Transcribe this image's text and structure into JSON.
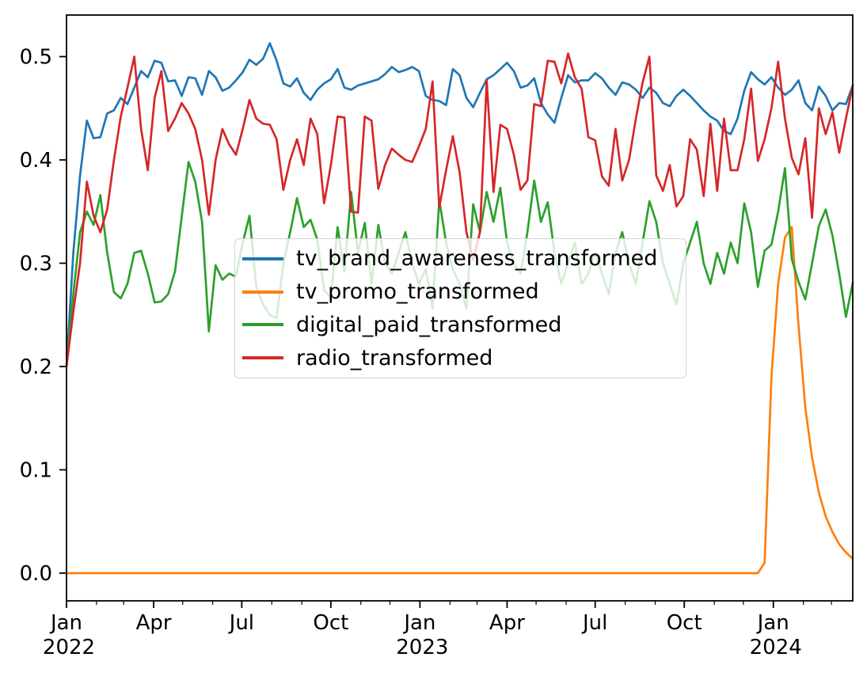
{
  "chart_data": {
    "type": "line",
    "title": "",
    "xlabel": "",
    "ylabel": "",
    "grid": false,
    "sampling": "weekly points, 7-day steps starting at first tick (Jan 2022)",
    "x_axis": {
      "domain_days": [
        0,
        812
      ],
      "major_ticks": [
        {
          "day": 0,
          "label": "Jan",
          "year_label": "2022"
        },
        {
          "day": 90,
          "label": "Apr",
          "year_label": ""
        },
        {
          "day": 181,
          "label": "Jul",
          "year_label": ""
        },
        {
          "day": 273,
          "label": "Oct",
          "year_label": ""
        },
        {
          "day": 365,
          "label": "Jan",
          "year_label": "2023"
        },
        {
          "day": 455,
          "label": "Apr",
          "year_label": ""
        },
        {
          "day": 546,
          "label": "Jul",
          "year_label": ""
        },
        {
          "day": 638,
          "label": "Oct",
          "year_label": ""
        },
        {
          "day": 730,
          "label": "Jan",
          "year_label": "2024"
        }
      ],
      "minor_tick_days": [
        31,
        59,
        120,
        151,
        212,
        243,
        304,
        334,
        396,
        424,
        485,
        516,
        577,
        608,
        669,
        699,
        761,
        790
      ]
    },
    "y_axis": {
      "range": [
        -0.027,
        0.54
      ],
      "ticks": [
        {
          "value": 0.0,
          "label": "0.0"
        },
        {
          "value": 0.1,
          "label": "0.1"
        },
        {
          "value": 0.2,
          "label": "0.2"
        },
        {
          "value": 0.3,
          "label": "0.3"
        },
        {
          "value": 0.4,
          "label": "0.4"
        },
        {
          "value": 0.5,
          "label": "0.5"
        }
      ]
    },
    "legend": {
      "position": "center-left",
      "entries": [
        "tv_brand_awareness_transformed",
        "tv_promo_transformed",
        "digital_paid_transformed",
        "radio_transformed"
      ]
    },
    "series": [
      {
        "name": "tv_brand_awareness_transformed",
        "color": "#1f77b4",
        "values": [
          0.2,
          0.31,
          0.385,
          0.438,
          0.421,
          0.422,
          0.445,
          0.448,
          0.46,
          0.454,
          0.47,
          0.486,
          0.48,
          0.496,
          0.494,
          0.476,
          0.477,
          0.462,
          0.48,
          0.479,
          0.463,
          0.486,
          0.48,
          0.467,
          0.47,
          0.477,
          0.485,
          0.497,
          0.492,
          0.498,
          0.513,
          0.496,
          0.474,
          0.471,
          0.479,
          0.465,
          0.458,
          0.468,
          0.474,
          0.478,
          0.488,
          0.47,
          0.468,
          0.472,
          0.474,
          0.476,
          0.478,
          0.483,
          0.49,
          0.485,
          0.487,
          0.49,
          0.486,
          0.462,
          0.458,
          0.457,
          0.453,
          0.488,
          0.482,
          0.46,
          0.451,
          0.465,
          0.478,
          0.482,
          0.488,
          0.494,
          0.486,
          0.47,
          0.472,
          0.479,
          0.455,
          0.444,
          0.436,
          0.46,
          0.482,
          0.475,
          0.477,
          0.477,
          0.484,
          0.479,
          0.47,
          0.463,
          0.475,
          0.473,
          0.468,
          0.46,
          0.47,
          0.465,
          0.455,
          0.452,
          0.462,
          0.468,
          0.462,
          0.455,
          0.448,
          0.442,
          0.438,
          0.428,
          0.425,
          0.44,
          0.467,
          0.485,
          0.478,
          0.473,
          0.48,
          0.47,
          0.463,
          0.468,
          0.477,
          0.455,
          0.448,
          0.471,
          0.462,
          0.448,
          0.455,
          0.454,
          0.472
        ]
      },
      {
        "name": "tv_promo_transformed",
        "color": "#ff7f0e",
        "values": [
          0,
          0,
          0,
          0,
          0,
          0,
          0,
          0,
          0,
          0,
          0,
          0,
          0,
          0,
          0,
          0,
          0,
          0,
          0,
          0,
          0,
          0,
          0,
          0,
          0,
          0,
          0,
          0,
          0,
          0,
          0,
          0,
          0,
          0,
          0,
          0,
          0,
          0,
          0,
          0,
          0,
          0,
          0,
          0,
          0,
          0,
          0,
          0,
          0,
          0,
          0,
          0,
          0,
          0,
          0,
          0,
          0,
          0,
          0,
          0,
          0,
          0,
          0,
          0,
          0,
          0,
          0,
          0,
          0,
          0,
          0,
          0,
          0,
          0,
          0,
          0,
          0,
          0,
          0,
          0,
          0,
          0,
          0,
          0,
          0,
          0,
          0,
          0,
          0,
          0,
          0,
          0,
          0,
          0,
          0,
          0,
          0,
          0,
          0,
          0,
          0,
          0,
          0,
          0.01,
          0.19,
          0.28,
          0.325,
          0.335,
          0.24,
          0.16,
          0.112,
          0.078,
          0.055,
          0.04,
          0.028,
          0.02,
          0.014
        ]
      },
      {
        "name": "digital_paid_transformed",
        "color": "#2ca02c",
        "values": [
          0.2,
          0.27,
          0.33,
          0.35,
          0.337,
          0.366,
          0.31,
          0.272,
          0.266,
          0.28,
          0.31,
          0.312,
          0.29,
          0.262,
          0.263,
          0.27,
          0.292,
          0.345,
          0.398,
          0.379,
          0.34,
          0.234,
          0.298,
          0.284,
          0.29,
          0.287,
          0.32,
          0.346,
          0.277,
          0.26,
          0.25,
          0.247,
          0.3,
          0.33,
          0.363,
          0.335,
          0.342,
          0.323,
          0.274,
          0.267,
          0.335,
          0.292,
          0.369,
          0.31,
          0.339,
          0.28,
          0.337,
          0.3,
          0.29,
          0.31,
          0.33,
          0.3,
          0.28,
          0.294,
          0.256,
          0.361,
          0.32,
          0.294,
          0.28,
          0.256,
          0.357,
          0.33,
          0.369,
          0.34,
          0.373,
          0.32,
          0.3,
          0.29,
          0.33,
          0.38,
          0.34,
          0.359,
          0.31,
          0.28,
          0.3,
          0.32,
          0.28,
          0.29,
          0.31,
          0.29,
          0.27,
          0.31,
          0.33,
          0.3,
          0.28,
          0.32,
          0.36,
          0.34,
          0.3,
          0.28,
          0.26,
          0.3,
          0.32,
          0.34,
          0.3,
          0.28,
          0.31,
          0.29,
          0.32,
          0.3,
          0.358,
          0.33,
          0.277,
          0.312,
          0.318,
          0.35,
          0.392,
          0.304,
          0.282,
          0.265,
          0.3,
          0.336,
          0.352,
          0.327,
          0.29,
          0.248,
          0.281
        ]
      },
      {
        "name": "radio_transformed",
        "color": "#d62728",
        "values": [
          0.2,
          0.253,
          0.3,
          0.379,
          0.346,
          0.33,
          0.352,
          0.4,
          0.442,
          0.47,
          0.5,
          0.43,
          0.39,
          0.46,
          0.486,
          0.428,
          0.44,
          0.455,
          0.445,
          0.43,
          0.4,
          0.347,
          0.4,
          0.43,
          0.415,
          0.405,
          0.43,
          0.458,
          0.44,
          0.435,
          0.434,
          0.42,
          0.371,
          0.4,
          0.42,
          0.395,
          0.44,
          0.425,
          0.358,
          0.395,
          0.442,
          0.441,
          0.35,
          0.349,
          0.442,
          0.438,
          0.372,
          0.395,
          0.411,
          0.405,
          0.4,
          0.398,
          0.413,
          0.43,
          0.476,
          0.354,
          0.39,
          0.423,
          0.388,
          0.33,
          0.303,
          0.33,
          0.477,
          0.369,
          0.434,
          0.43,
          0.405,
          0.371,
          0.38,
          0.454,
          0.452,
          0.496,
          0.495,
          0.474,
          0.503,
          0.48,
          0.469,
          0.422,
          0.419,
          0.384,
          0.375,
          0.43,
          0.38,
          0.4,
          0.44,
          0.475,
          0.5,
          0.385,
          0.37,
          0.395,
          0.355,
          0.365,
          0.42,
          0.41,
          0.365,
          0.435,
          0.37,
          0.44,
          0.39,
          0.39,
          0.42,
          0.469,
          0.399,
          0.42,
          0.45,
          0.495,
          0.44,
          0.402,
          0.386,
          0.421,
          0.344,
          0.45,
          0.425,
          0.446,
          0.407,
          0.44,
          0.472
        ]
      }
    ]
  }
}
